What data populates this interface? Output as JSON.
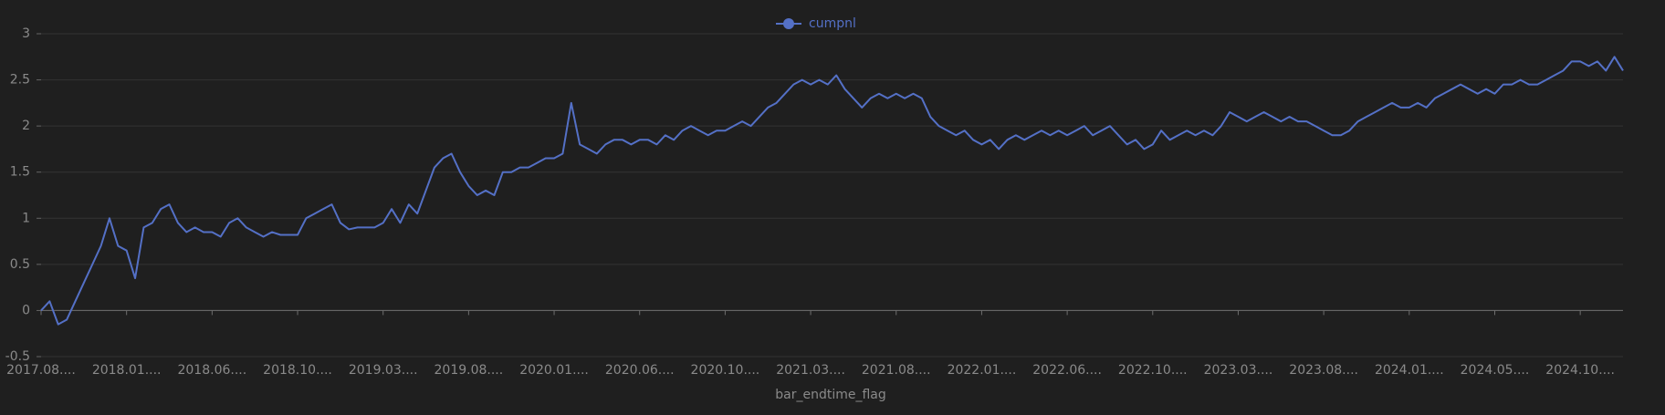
{
  "chart_data": {
    "type": "line",
    "legend_position": "top",
    "x_label": "bar_endtime_flag",
    "categories": [
      "2017.08....",
      null,
      null,
      null,
      null,
      null,
      null,
      null,
      null,
      null,
      "2018.01....",
      null,
      null,
      null,
      null,
      null,
      null,
      null,
      null,
      null,
      "2018.06....",
      null,
      null,
      null,
      null,
      null,
      null,
      null,
      null,
      null,
      "2018.10....",
      null,
      null,
      null,
      null,
      null,
      null,
      null,
      null,
      null,
      "2019.03....",
      null,
      null,
      null,
      null,
      null,
      null,
      null,
      null,
      null,
      "2019.08....",
      null,
      null,
      null,
      null,
      null,
      null,
      null,
      null,
      null,
      "2020.01....",
      null,
      null,
      null,
      null,
      null,
      null,
      null,
      null,
      null,
      "2020.06....",
      null,
      null,
      null,
      null,
      null,
      null,
      null,
      null,
      null,
      "2020.10....",
      null,
      null,
      null,
      null,
      null,
      null,
      null,
      null,
      null,
      "2021.03....",
      null,
      null,
      null,
      null,
      null,
      null,
      null,
      null,
      null,
      "2021.08....",
      null,
      null,
      null,
      null,
      null,
      null,
      null,
      null,
      null,
      "2022.01....",
      null,
      null,
      null,
      null,
      null,
      null,
      null,
      null,
      null,
      "2022.06....",
      null,
      null,
      null,
      null,
      null,
      null,
      null,
      null,
      null,
      "2022.10....",
      null,
      null,
      null,
      null,
      null,
      null,
      null,
      null,
      null,
      "2023.03....",
      null,
      null,
      null,
      null,
      null,
      null,
      null,
      null,
      null,
      "2023.08....",
      null,
      null,
      null,
      null,
      null,
      null,
      null,
      null,
      null,
      "2024.01....",
      null,
      null,
      null,
      null,
      null,
      null,
      null,
      null,
      null,
      "2024.05....",
      null,
      null,
      null,
      null,
      null,
      null,
      null,
      null,
      null,
      "2024.10....",
      null,
      null,
      null,
      null,
      null
    ],
    "series": [
      {
        "name": "cumpnl",
        "color": "#5470c6",
        "values": [
          0,
          0.1,
          -0.15,
          -0.1,
          0.1,
          0.3,
          0.5,
          0.7,
          1.0,
          0.7,
          0.65,
          0.35,
          0.9,
          0.95,
          1.1,
          1.15,
          0.95,
          0.85,
          0.9,
          0.85,
          0.85,
          0.8,
          0.95,
          1.0,
          0.9,
          0.85,
          0.8,
          0.85,
          0.82,
          0.82,
          0.82,
          1.0,
          1.05,
          1.1,
          1.15,
          0.95,
          0.88,
          0.9,
          0.9,
          0.9,
          0.95,
          1.1,
          0.95,
          1.15,
          1.05,
          1.3,
          1.55,
          1.65,
          1.7,
          1.5,
          1.35,
          1.25,
          1.3,
          1.25,
          1.5,
          1.5,
          1.55,
          1.55,
          1.6,
          1.65,
          1.65,
          1.7,
          2.25,
          1.8,
          1.75,
          1.7,
          1.8,
          1.85,
          1.85,
          1.8,
          1.85,
          1.85,
          1.8,
          1.9,
          1.85,
          1.95,
          2.0,
          1.95,
          1.9,
          1.95,
          1.95,
          2.0,
          2.05,
          2.0,
          2.1,
          2.2,
          2.25,
          2.35,
          2.45,
          2.5,
          2.45,
          2.5,
          2.45,
          2.55,
          2.4,
          2.3,
          2.2,
          2.3,
          2.35,
          2.3,
          2.35,
          2.3,
          2.35,
          2.3,
          2.1,
          2.0,
          1.95,
          1.9,
          1.95,
          1.85,
          1.8,
          1.85,
          1.75,
          1.85,
          1.9,
          1.85,
          1.9,
          1.95,
          1.9,
          1.95,
          1.9,
          1.95,
          2.0,
          1.9,
          1.95,
          2.0,
          1.9,
          1.8,
          1.85,
          1.75,
          1.8,
          1.95,
          1.85,
          1.9,
          1.95,
          1.9,
          1.95,
          1.9,
          2.0,
          2.15,
          2.1,
          2.05,
          2.1,
          2.15,
          2.1,
          2.05,
          2.1,
          2.05,
          2.05,
          2.0,
          1.95,
          1.9,
          1.9,
          1.95,
          2.05,
          2.1,
          2.15,
          2.2,
          2.25,
          2.2,
          2.2,
          2.25,
          2.2,
          2.3,
          2.35,
          2.4,
          2.45,
          2.4,
          2.35,
          2.4,
          2.35,
          2.45,
          2.45,
          2.5,
          2.45,
          2.45,
          2.5,
          2.55,
          2.6,
          2.7,
          2.7,
          2.65,
          2.7,
          2.6,
          2.75,
          2.6
        ]
      }
    ],
    "ylim": [
      -0.5,
      3
    ],
    "yticks": [
      -0.5,
      0,
      0.5,
      1,
      1.5,
      2,
      2.5,
      3
    ],
    "grid": true
  }
}
